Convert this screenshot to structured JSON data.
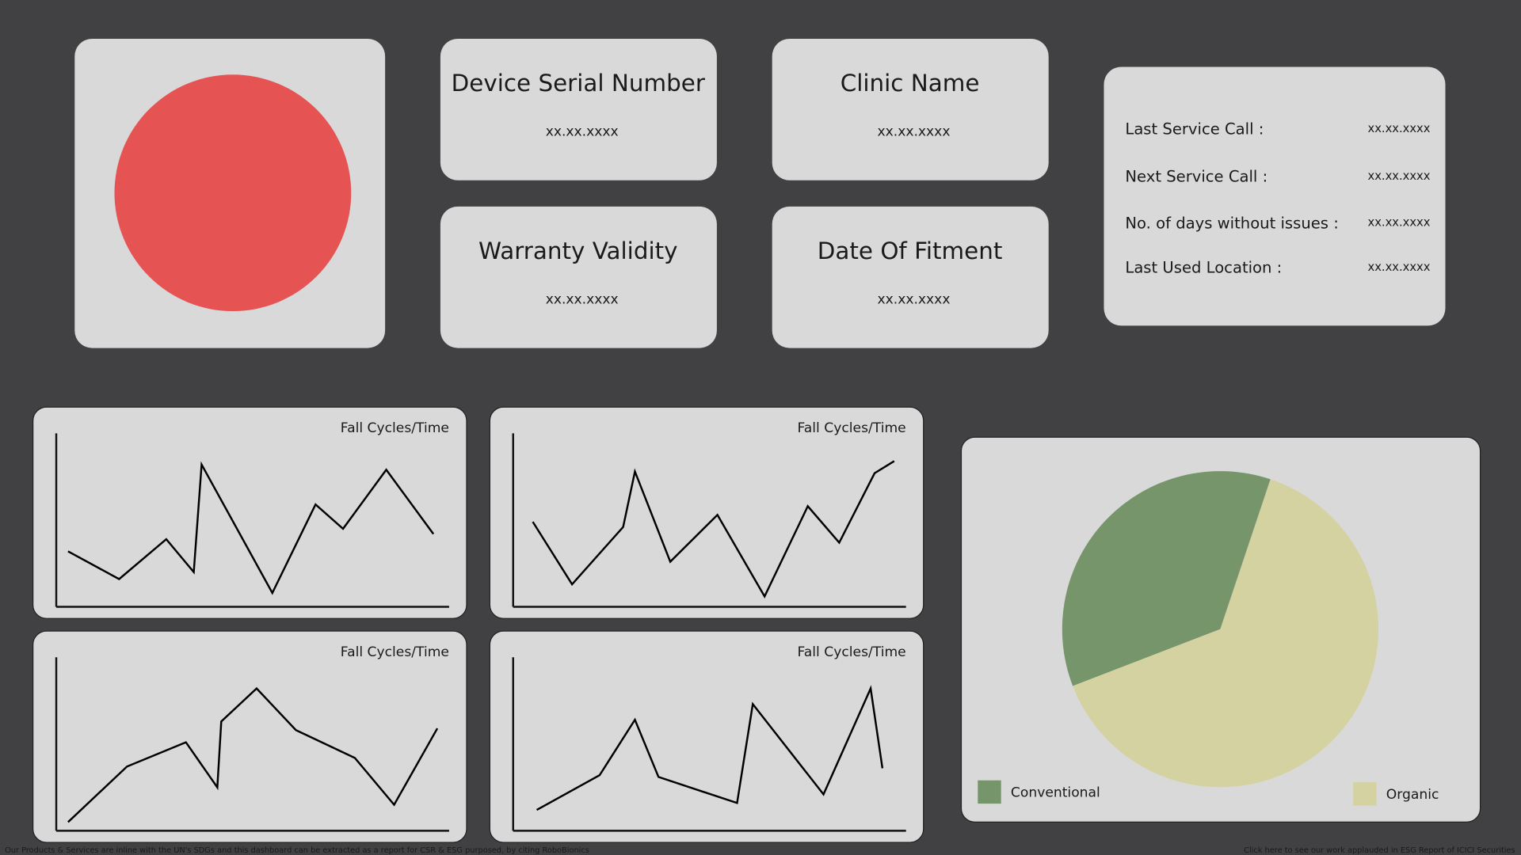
{
  "tiles": [
    {
      "title": "Device Serial Number",
      "value": "xx.xx.xxxx"
    },
    {
      "title": "Clinic Name",
      "value": "xx.xx.xxxx"
    },
    {
      "title": "Warranty Validity",
      "value": "xx.xx.xxxx"
    },
    {
      "title": "Date Of Fitment",
      "value": "xx.xx.xxxx"
    }
  ],
  "service_info": [
    {
      "label": "Last Service Call :",
      "value": "xx.xx.xxxx"
    },
    {
      "label": "Next Service Call :",
      "value": "xx.xx.xxxx"
    },
    {
      "label": "No. of days without issues :",
      "value": "xx.xx.xxxx"
    },
    {
      "label": "Last Used Location :",
      "value": "xx.xx.xxxx"
    }
  ],
  "chart_data": [
    {
      "type": "line",
      "title": "Fall Cycles/Time",
      "color": "#000000",
      "xlim": [
        0,
        100
      ],
      "ylim": [
        0,
        100
      ],
      "x": [
        3,
        16,
        28,
        35,
        37,
        55,
        66,
        73,
        84,
        96
      ],
      "values": [
        32,
        16,
        39,
        20,
        82,
        8,
        59,
        45,
        79,
        42
      ]
    },
    {
      "type": "line",
      "title": "Fall Cycles/Time",
      "color": "#000000",
      "xlim": [
        0,
        100
      ],
      "ylim": [
        0,
        100
      ],
      "x": [
        5,
        15,
        28,
        31,
        40,
        52,
        64,
        75,
        83,
        92,
        97
      ],
      "values": [
        49,
        13,
        46,
        78,
        26,
        53,
        6,
        58,
        37,
        77,
        84
      ]
    },
    {
      "type": "line",
      "title": "Fall Cycles/Time",
      "color": "#000000",
      "xlim": [
        0,
        100
      ],
      "ylim": [
        0,
        100
      ],
      "x": [
        3,
        18,
        33,
        41,
        42,
        51,
        61,
        76,
        86,
        97
      ],
      "values": [
        5,
        37,
        51,
        25,
        63,
        82,
        58,
        42,
        15,
        59
      ]
    },
    {
      "type": "line",
      "title": "Fall Cycles/Time",
      "color": "#000000",
      "xlim": [
        0,
        100
      ],
      "ylim": [
        0,
        100
      ],
      "x": [
        6,
        22,
        31,
        37,
        57,
        61,
        79,
        91,
        94
      ],
      "values": [
        12,
        32,
        64,
        31,
        16,
        73,
        21,
        82,
        36
      ]
    },
    {
      "type": "pie",
      "categories": [
        "Conventional",
        "Organic"
      ],
      "values": [
        36,
        64
      ],
      "colors": [
        "#76956b",
        "#d4d2a0"
      ]
    }
  ],
  "footer": {
    "left": "Our Products & Services are inline with the UN's SDGs and this dashboard can be extracted as a report for CSR & ESG purposed, by citing RoboBionics",
    "right": "Click here to see our work applauded in ESG Report of ICICI Securities"
  }
}
